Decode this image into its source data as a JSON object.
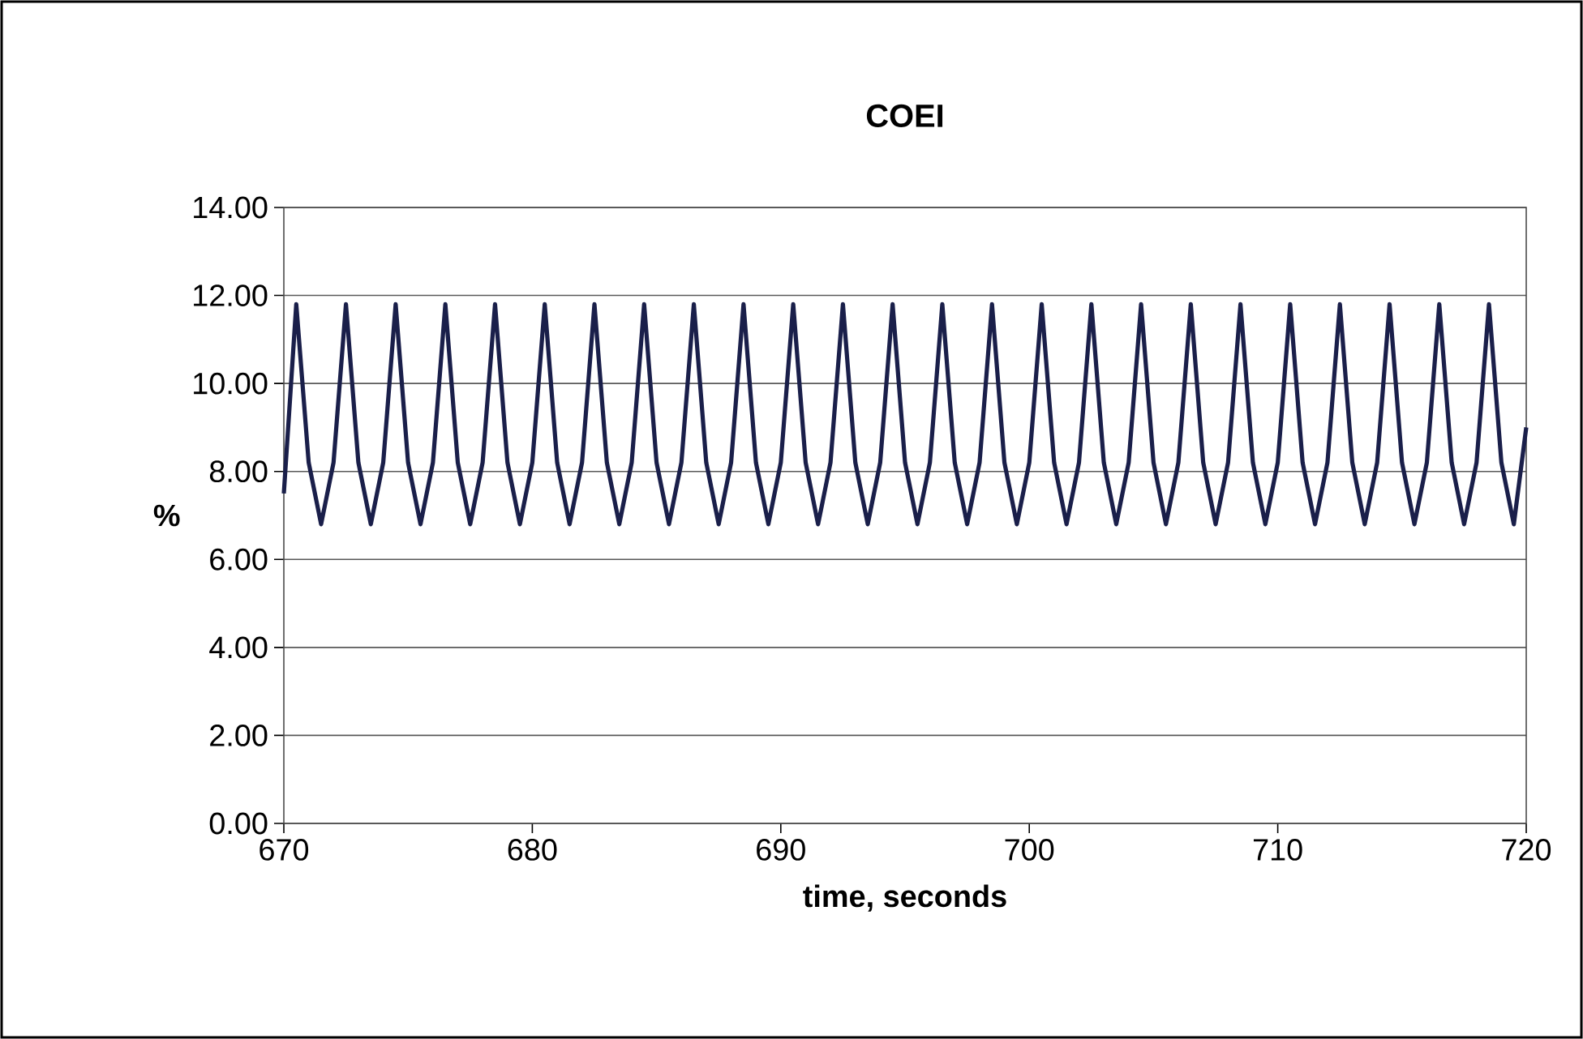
{
  "chart_data": {
    "type": "line",
    "title": "COEI",
    "xlabel": "time, seconds",
    "ylabel": "%",
    "x": [
      670,
      670.5,
      671,
      671.5,
      672,
      672.5,
      673,
      673.5,
      674,
      674.5,
      675,
      675.5,
      676,
      676.5,
      677,
      677.5,
      678,
      678.5,
      679,
      679.5,
      680,
      680.5,
      681,
      681.5,
      682,
      682.5,
      683,
      683.5,
      684,
      684.5,
      685,
      685.5,
      686,
      686.5,
      687,
      687.5,
      688,
      688.5,
      689,
      689.5,
      690,
      690.5,
      691,
      691.5,
      692,
      692.5,
      693,
      693.5,
      694,
      694.5,
      695,
      695.5,
      696,
      696.5,
      697,
      697.5,
      698,
      698.5,
      699,
      699.5,
      700,
      700.5,
      701,
      701.5,
      702,
      702.5,
      703,
      703.5,
      704,
      704.5,
      705,
      705.5,
      706,
      706.5,
      707,
      707.5,
      708,
      708.5,
      709,
      709.5,
      710,
      710.5,
      711,
      711.5,
      712,
      712.5,
      713,
      713.5,
      714,
      714.5,
      715,
      715.5,
      716,
      716.5,
      717,
      717.5,
      718,
      718.5,
      719,
      719.5,
      720
    ],
    "values": [
      7.5,
      11.8,
      8.2,
      6.8,
      8.2,
      11.8,
      8.2,
      6.8,
      8.2,
      11.8,
      8.2,
      6.8,
      8.2,
      11.8,
      8.2,
      6.8,
      8.2,
      11.8,
      8.2,
      6.8,
      8.2,
      11.8,
      8.2,
      6.8,
      8.2,
      11.8,
      8.2,
      6.8,
      8.2,
      11.8,
      8.2,
      6.8,
      8.2,
      11.8,
      8.2,
      6.8,
      8.2,
      11.8,
      8.2,
      6.8,
      8.2,
      11.8,
      8.2,
      6.8,
      8.2,
      11.8,
      8.2,
      6.8,
      8.2,
      11.8,
      8.2,
      6.8,
      8.2,
      11.8,
      8.2,
      6.8,
      8.2,
      11.8,
      8.2,
      6.8,
      8.2,
      11.8,
      8.2,
      6.8,
      8.2,
      11.8,
      8.2,
      6.8,
      8.2,
      11.8,
      8.2,
      6.8,
      8.2,
      11.8,
      8.2,
      6.8,
      8.2,
      11.8,
      8.2,
      6.8,
      8.2,
      11.8,
      8.2,
      6.8,
      8.2,
      11.8,
      8.2,
      6.8,
      8.2,
      11.8,
      8.2,
      6.8,
      8.2,
      11.8,
      8.2,
      6.8,
      8.2,
      11.8,
      8.2,
      6.8,
      9.0
    ],
    "color": "#1a1f4a",
    "xlim": [
      670,
      720
    ],
    "xticks": [
      670,
      680,
      690,
      700,
      710,
      720
    ],
    "ylim": [
      0,
      14
    ],
    "yticks": [
      {
        "value": 0,
        "label": "0.00"
      },
      {
        "value": 2,
        "label": "2.00"
      },
      {
        "value": 4,
        "label": "4.00"
      },
      {
        "value": 6,
        "label": "6.00"
      },
      {
        "value": 8,
        "label": "8.00"
      },
      {
        "value": 10,
        "label": "10.00"
      },
      {
        "value": 12,
        "label": "12.00"
      },
      {
        "value": 14,
        "label": "14.00"
      }
    ],
    "grid": "y"
  }
}
